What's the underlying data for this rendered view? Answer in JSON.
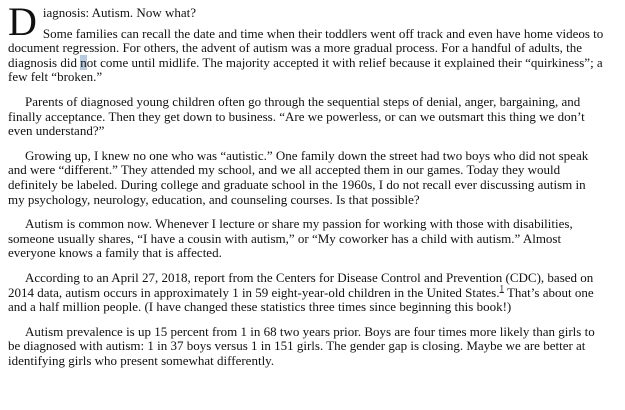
{
  "document": {
    "drop_cap": "D",
    "opening_rest": "iagnosis: Autism. Now what?",
    "paragraphs": {
      "p2": {
        "before_highlight": "Some families can recall the date and time when their toddlers went off track and even have home videos to document regression. For others, the advent of autism was a more gradual process. For a handful of adults, the diagnosis did ",
        "highlighted_char": "n",
        "after_highlight": "ot come until midlife. The majority accepted it with relief because it explained their “quirkiness”; a few felt “broken.”"
      },
      "p3": "Parents of diagnosed young children often go through the sequential steps of denial, anger, bargaining, and finally acceptance. Then they get down to business. “Are we powerless, or can we outsmart this thing we don’t even understand?”",
      "p4": "Growing up, I knew no one who was “autistic.” One family down the street had two boys who did not speak and were “different.” They attended my school, and we all accepted them in our games. Today they would definitely be labeled. During college and graduate school in the 1960s, I do not recall ever discussing autism in my psychology, neurology, education, and counseling courses. Is that possible?",
      "p5": "Autism is common now. Whenever I lecture or share my passion for working with those with disabilities, someone usually shares, “I have a cousin with autism,” or “My coworker has a child with autism.” Almost everyone knows a family that is affected.",
      "p6": {
        "before_footnote": "According to an April 27, 2018, report from the Centers for Disease Control and Prevention (CDC), based on 2014 data, autism occurs in approximately 1 in 59 eight-year-old children in the United States.",
        "footnote_marker": "1",
        "after_footnote": " That’s about one and a half million people. (I have changed these statistics three times since beginning this book!)"
      },
      "p7": "Autism prevalence is up 15 percent from 1 in 68 two years prior. Boys are four times more likely than girls to be diagnosed with autism: 1 in 37 boys versus 1 in 151 girls. The gender gap is closing. Maybe we are better at identifying girls who present somewhat differently."
    }
  },
  "colors": {
    "background": "#ffffff",
    "text": "#111111",
    "char_highlight": "#b9cce1",
    "footnote_link": "#222222"
  }
}
